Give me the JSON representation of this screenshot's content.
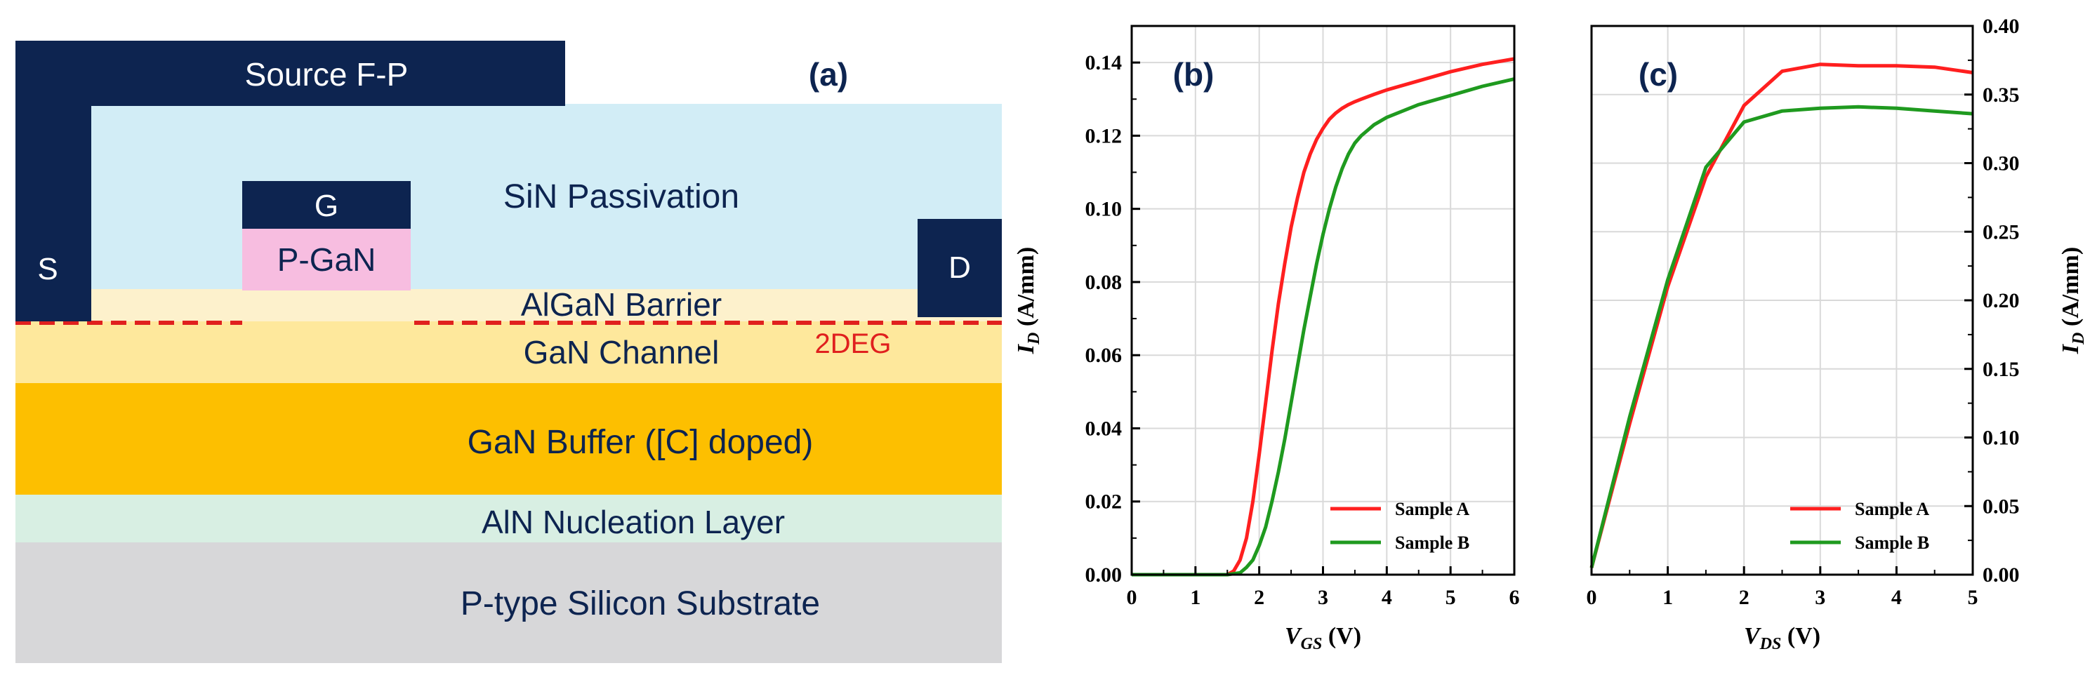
{
  "colors": {
    "navy": "#0d2450",
    "sin": "#d2edf6",
    "algan": "#fdf1cc",
    "gan_channel": "#fee89c",
    "gan_buffer": "#fdbf00",
    "aln": "#d8efe3",
    "substrate": "#d7d7d9",
    "pgan": "#f7bde0",
    "twodeg": "#e0201e",
    "sample_a": "#ff1f1f",
    "sample_b": "#1f9a1f",
    "grid": "#d9d9d9"
  },
  "panel_a": {
    "tag": "(a)",
    "source_fp": "Source F-P",
    "s": "S",
    "g": "G",
    "d": "D",
    "pgan": "P-GaN",
    "sin": "SiN Passivation",
    "algan": "AlGaN Barrier",
    "twodeg": "2DEG",
    "gan_channel": "GaN Channel",
    "gan_buffer": "GaN Buffer ([C] doped)",
    "aln": "AlN Nucleation Layer",
    "substrate": "P-type Silicon Substrate"
  },
  "chart_data": [
    {
      "type": "line",
      "tag": "(b)",
      "xlabel_main": "V",
      "xlabel_sub": "GS",
      "xlabel_unit": " (V)",
      "ylabel_main": "I",
      "ylabel_sub": "D",
      "ylabel_unit": " (A/mm)",
      "xlim": [
        0,
        6
      ],
      "ylim": [
        0,
        0.15
      ],
      "xticks": [
        0,
        1,
        2,
        3,
        4,
        5,
        6
      ],
      "xtick_labels": [
        "0",
        "1",
        "2",
        "3",
        "4",
        "5",
        "6"
      ],
      "yticks": [
        0,
        0.02,
        0.04,
        0.06,
        0.08,
        0.1,
        0.12,
        0.14
      ],
      "ytick_labels": [
        "0.00",
        "0.02",
        "0.04",
        "0.06",
        "0.08",
        "0.10",
        "0.12",
        "0.14"
      ],
      "legend_position": "bottom-right",
      "series": [
        {
          "name": "Sample A",
          "x": [
            0,
            1.5,
            1.6,
            1.7,
            1.8,
            1.9,
            2.0,
            2.1,
            2.2,
            2.3,
            2.4,
            2.5,
            2.6,
            2.7,
            2.8,
            2.9,
            3.0,
            3.1,
            3.2,
            3.3,
            3.4,
            3.5,
            3.6,
            3.8,
            4.0,
            4.5,
            5.0,
            5.5,
            6.0
          ],
          "y": [
            0,
            0,
            0.001,
            0.004,
            0.01,
            0.02,
            0.033,
            0.047,
            0.061,
            0.074,
            0.085,
            0.095,
            0.103,
            0.11,
            0.115,
            0.119,
            0.122,
            0.1245,
            0.1262,
            0.1275,
            0.1285,
            0.1293,
            0.13,
            0.1313,
            0.1325,
            0.135,
            0.1375,
            0.1395,
            0.141
          ]
        },
        {
          "name": "Sample B",
          "x": [
            0,
            1.5,
            1.7,
            1.8,
            1.9,
            2.0,
            2.1,
            2.2,
            2.3,
            2.4,
            2.5,
            2.6,
            2.7,
            2.8,
            2.9,
            3.0,
            3.1,
            3.2,
            3.3,
            3.4,
            3.5,
            3.6,
            3.7,
            3.8,
            4.0,
            4.5,
            5.0,
            5.5,
            6.0
          ],
          "y": [
            0,
            0,
            0.0005,
            0.002,
            0.004,
            0.008,
            0.013,
            0.02,
            0.028,
            0.037,
            0.047,
            0.057,
            0.067,
            0.076,
            0.085,
            0.093,
            0.1,
            0.106,
            0.111,
            0.115,
            0.118,
            0.12,
            0.1215,
            0.123,
            0.125,
            0.1285,
            0.131,
            0.1335,
            0.1355
          ]
        }
      ]
    },
    {
      "type": "line",
      "tag": "(c)",
      "xlabel_main": "V",
      "xlabel_sub": "DS",
      "xlabel_unit": " (V)",
      "ylabel_main": "I",
      "ylabel_sub": "D",
      "ylabel_unit": " (A/mm)",
      "xlim": [
        0,
        5
      ],
      "ylim": [
        0,
        0.4
      ],
      "xticks": [
        0,
        1,
        2,
        3,
        4,
        5
      ],
      "xtick_labels": [
        "0",
        "1",
        "2",
        "3",
        "4",
        "5"
      ],
      "yticks": [
        0,
        0.05,
        0.1,
        0.15,
        0.2,
        0.25,
        0.3,
        0.35,
        0.4
      ],
      "ytick_labels": [
        "0.00",
        "0.05",
        "0.10",
        "0.15",
        "0.20",
        "0.25",
        "0.30",
        "0.35",
        "0.40"
      ],
      "legend_position": "bottom-right",
      "series": [
        {
          "name": "Sample A",
          "x": [
            0,
            0.5,
            1.0,
            1.5,
            2.0,
            2.5,
            3.0,
            3.5,
            4.0,
            4.5,
            5.0
          ],
          "y": [
            0.005,
            0.11,
            0.21,
            0.29,
            0.342,
            0.367,
            0.372,
            0.371,
            0.371,
            0.37,
            0.366
          ]
        },
        {
          "name": "Sample B",
          "x": [
            0,
            0.5,
            1.0,
            1.5,
            2.0,
            2.5,
            3.0,
            3.5,
            4.0,
            4.5,
            5.0
          ],
          "y": [
            0.005,
            0.115,
            0.215,
            0.297,
            0.33,
            0.338,
            0.34,
            0.341,
            0.34,
            0.338,
            0.336
          ]
        }
      ]
    }
  ]
}
